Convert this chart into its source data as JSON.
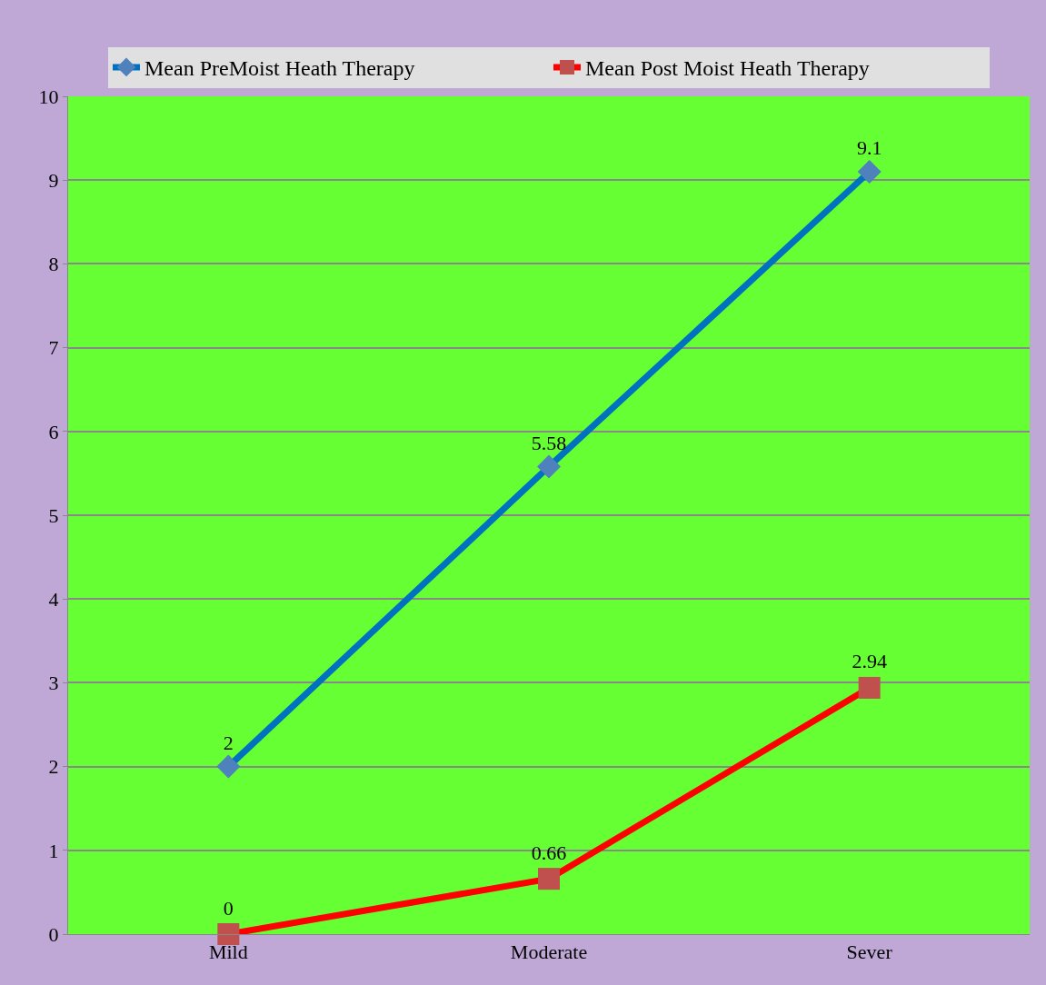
{
  "chart_data": {
    "type": "line",
    "categories": [
      "Mild",
      "Moderate",
      "Sever"
    ],
    "series": [
      {
        "name": "Mean PreMoist Heath Therapy",
        "color": "#0070c0",
        "marker": "diamond",
        "values": [
          2,
          5.58,
          9.1
        ]
      },
      {
        "name": "Mean Post Moist Heath Therapy",
        "color": "#ff0000",
        "marker": "square",
        "values": [
          0,
          0.66,
          2.94
        ]
      }
    ],
    "ylim": [
      0,
      10
    ],
    "yticks": [
      0,
      1,
      2,
      3,
      4,
      5,
      6,
      7,
      8,
      9,
      10
    ],
    "grid": "y",
    "legend": "top",
    "data_labels": true
  }
}
